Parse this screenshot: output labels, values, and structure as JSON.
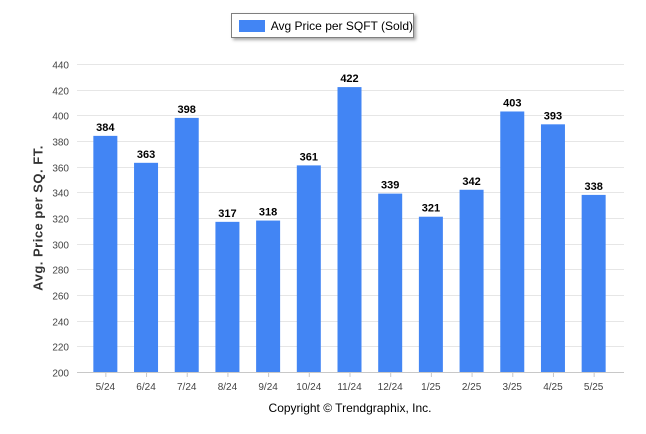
{
  "chart_data": {
    "type": "bar",
    "title": "",
    "ylabel": "Avg. Price per SQ. FT.",
    "xlabel": "",
    "categories": [
      "5/24",
      "6/24",
      "7/24",
      "8/24",
      "9/24",
      "10/24",
      "11/24",
      "12/24",
      "1/25",
      "2/25",
      "3/25",
      "4/25",
      "5/25"
    ],
    "series": [
      {
        "name": "Avg Price per SQFT (Sold)",
        "values": [
          384,
          363,
          398,
          317,
          318,
          361,
          422,
          339,
          321,
          342,
          403,
          393,
          338
        ]
      }
    ],
    "ylim": [
      200,
      440
    ],
    "yticks": [
      200,
      220,
      240,
      260,
      280,
      300,
      320,
      340,
      360,
      380,
      400,
      420,
      440
    ],
    "grid": true,
    "legend_position": "top-center",
    "bar_color": "#4285f4",
    "footer": "Copyright © Trendgraphix, Inc."
  }
}
